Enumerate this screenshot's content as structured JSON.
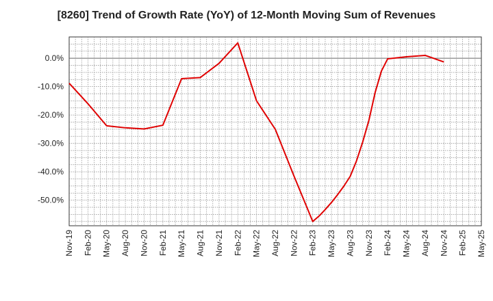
{
  "chart_data": {
    "type": "line",
    "title": "[8260]  Trend of Growth Rate (YoY) of 12-Month Moving Sum of Revenues",
    "xlabel": "",
    "ylabel": "",
    "x_tick_labels": [
      "Nov-19",
      "Feb-20",
      "May-20",
      "Aug-20",
      "Nov-20",
      "Feb-21",
      "May-21",
      "Aug-21",
      "Nov-21",
      "Feb-22",
      "May-22",
      "Aug-22",
      "Nov-22",
      "Feb-23",
      "May-23",
      "Aug-23",
      "Nov-23",
      "Feb-24",
      "May-24",
      "Aug-24",
      "Nov-24",
      "Feb-25",
      "May-25"
    ],
    "y_tick_labels": [
      "0.0%",
      "-10.0%",
      "-20.0%",
      "-30.0%",
      "-40.0%",
      "-50.0%"
    ],
    "y_ticks": [
      0,
      -10,
      -20,
      -30,
      -40,
      -50
    ],
    "ylim": [
      -59,
      7.5
    ],
    "grid": true,
    "color": "#e00000",
    "series": [
      {
        "x": [
          "Nov-19",
          "Feb-20",
          "May-20",
          "Aug-20",
          "Nov-20",
          "Feb-21",
          "May-21",
          "Aug-21",
          "Nov-21",
          "Feb-22",
          "May-22",
          "Aug-22",
          "Nov-22",
          "Feb-23",
          "Mar-23",
          "Apr-23",
          "May-23",
          "Jun-23",
          "Jul-23",
          "Aug-23",
          "Sep-23",
          "Oct-23",
          "Nov-23",
          "Dec-23",
          "Jan-24",
          "Feb-24",
          "May-24",
          "Aug-24",
          "Nov-24"
        ],
        "values": [
          -8.8,
          -16.0,
          -23.8,
          -24.5,
          -24.9,
          -23.6,
          -7.2,
          -6.8,
          -1.8,
          5.4,
          -15.0,
          -25.0,
          -41.5,
          -57.5,
          -55.6,
          -53.3,
          -50.8,
          -48.0,
          -45.0,
          -41.6,
          -36.2,
          -29.5,
          -21.8,
          -12.0,
          -4.5,
          -0.2,
          0.5,
          1.0,
          -1.3
        ]
      }
    ]
  }
}
